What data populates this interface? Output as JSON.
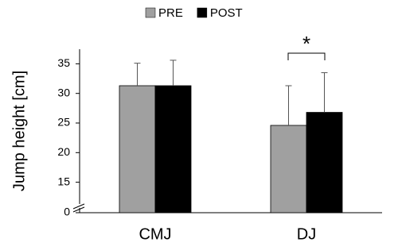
{
  "chart_data": {
    "type": "bar",
    "y_label": "Jump height [cm]",
    "categories": [
      "CMJ",
      "DJ"
    ],
    "series": [
      {
        "name": "PRE",
        "color": "#a0a0a0",
        "values": [
          31.3,
          24.6
        ],
        "errors": [
          3.8,
          6.7
        ]
      },
      {
        "name": "POST",
        "color": "#000000",
        "values": [
          31.3,
          26.8
        ],
        "errors": [
          4.3,
          6.7
        ]
      }
    ],
    "ylim": [
      0,
      38
    ],
    "yticks": [
      0,
      15,
      20,
      25,
      30,
      35
    ],
    "axis_break": true,
    "annotation": "*",
    "legend": "top"
  }
}
